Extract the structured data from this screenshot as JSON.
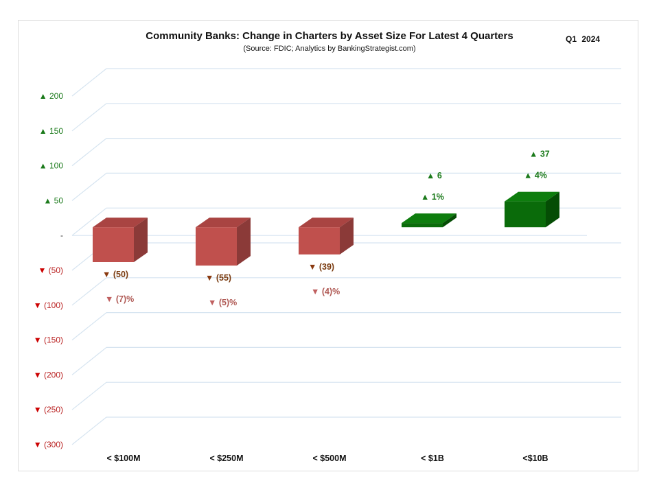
{
  "chart_data": {
    "type": "bar",
    "title": "Community Banks: Change in Charters by Asset Size For Latest 4 Quarters",
    "subtitle": "(Source: FDIC; Analytics by BankingStrategist.com)",
    "period": "Q1 2024",
    "categories": [
      "< $100M",
      "< $250M",
      "< $500M",
      "< $1B",
      "<$10B"
    ],
    "values": [
      -50,
      -55,
      -39,
      6,
      37
    ],
    "value_labels": [
      "(50)",
      "(55)",
      "(39)",
      "6",
      "37"
    ],
    "percent_labels": [
      "(7)%",
      "(5)%",
      "(4)%",
      "1%",
      "4%"
    ],
    "ylim": [
      -300,
      200
    ],
    "y_ticks": [
      200,
      150,
      100,
      50,
      0,
      -50,
      -100,
      -150,
      -200,
      -250,
      -300
    ],
    "y_tick_labels": [
      "▲ 200",
      "▲ 150",
      "▲ 100",
      "▲ 50",
      "-",
      "▼ (50)",
      "▼ (100)",
      "▼ (150)",
      "▼ (200)",
      "▼ (250)",
      "▼ (300)"
    ],
    "up_marker": "▲",
    "down_marker": "▼",
    "colors": {
      "negative_front": "#c0504d",
      "negative_top": "#a94442",
      "negative_side": "#8b3a38",
      "positive_front": "#0a6b0a",
      "positive_top": "#0e7d0e",
      "positive_side": "#054d05",
      "up_label": "#1b7a1b",
      "down_tick": "#cc0000",
      "neg_value_text": "#7a3b10",
      "neg_pct_text": "#b05a55",
      "gridline": "#d6e4f0"
    }
  }
}
